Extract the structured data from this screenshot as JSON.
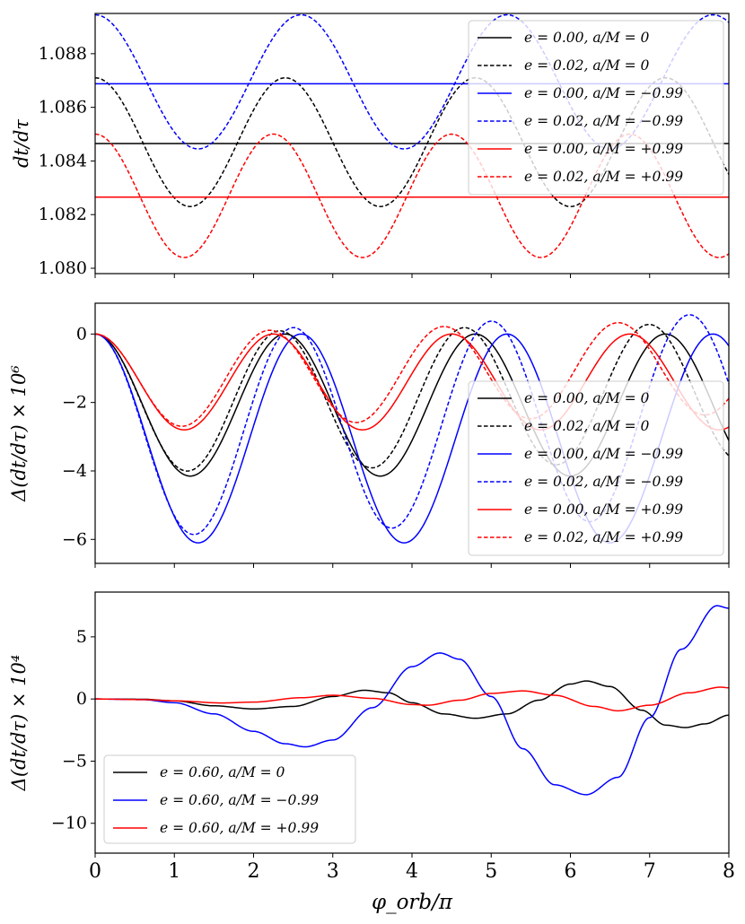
{
  "chart_data": [
    {
      "type": "line",
      "title": "",
      "ylabel": "dt/dτ",
      "xlabel": "",
      "xlim": [
        0,
        8
      ],
      "ylim": [
        1.0798,
        1.0895
      ],
      "yticks": [
        1.08,
        1.082,
        1.084,
        1.086,
        1.088
      ],
      "ytick_labels": [
        "1.080",
        "1.082",
        "1.084",
        "1.086",
        "1.088"
      ],
      "legend_position": "top-right",
      "series": [
        {
          "name": "e = 0.00, a/M = 0",
          "color": "#000000",
          "dash": "solid",
          "kind": "const",
          "value": 1.08465
        },
        {
          "name": "e = 0.02, a/M = 0",
          "color": "#000000",
          "dash": "dashed",
          "kind": "cos",
          "mean": 1.0847,
          "amp": 0.0024,
          "period": 2.4
        },
        {
          "name": "e = 0.00, a/M = −0.99",
          "color": "#0000ff",
          "dash": "solid",
          "kind": "const",
          "value": 1.08688
        },
        {
          "name": "e = 0.02, a/M = −0.99",
          "color": "#0000ff",
          "dash": "dashed",
          "kind": "cos",
          "mean": 1.08695,
          "amp": 0.0025,
          "period": 2.6
        },
        {
          "name": "e = 0.00, a/M = +0.99",
          "color": "#ff0000",
          "dash": "solid",
          "kind": "const",
          "value": 1.08265
        },
        {
          "name": "e = 0.02, a/M = +0.99",
          "color": "#ff0000",
          "dash": "dashed",
          "kind": "cos",
          "mean": 1.0827,
          "amp": 0.0023,
          "period": 2.25
        }
      ]
    },
    {
      "type": "line",
      "title": "",
      "ylabel": "Δ(dt/dτ) × 10⁶",
      "xlabel": "",
      "xlim": [
        0,
        8
      ],
      "ylim": [
        -6.7,
        0.9
      ],
      "yticks": [
        0,
        -2,
        -4,
        -6
      ],
      "ytick_labels": [
        "0",
        "−2",
        "−4",
        "−6"
      ],
      "legend_position": "bottom-right",
      "series": [
        {
          "name": "e = 0.00, a/M = 0",
          "color": "#000000",
          "dash": "solid",
          "kind": "dip",
          "depth": 4.15,
          "period": 2.4,
          "growth": 0
        },
        {
          "name": "e = 0.02, a/M = 0",
          "color": "#000000",
          "dash": "dashed",
          "kind": "dip",
          "depth": 4.05,
          "period": 2.33,
          "growth": 0.08
        },
        {
          "name": "e = 0.00, a/M = −0.99",
          "color": "#0000ff",
          "dash": "solid",
          "kind": "dip",
          "depth": 6.1,
          "period": 2.6,
          "growth": 0
        },
        {
          "name": "e = 0.02, a/M = −0.99",
          "color": "#0000ff",
          "dash": "dashed",
          "kind": "dip",
          "depth": 5.95,
          "period": 2.5,
          "growth": 0.15
        },
        {
          "name": "e = 0.00, a/M = +0.99",
          "color": "#ff0000",
          "dash": "solid",
          "kind": "dip",
          "depth": 2.8,
          "period": 2.25,
          "growth": 0
        },
        {
          "name": "e = 0.02, a/M = +0.99",
          "color": "#ff0000",
          "dash": "dashed",
          "kind": "dip",
          "depth": 2.75,
          "period": 2.2,
          "growth": 0.1
        }
      ]
    },
    {
      "type": "line",
      "title": "",
      "ylabel": "Δ(dt/dτ) × 10⁴",
      "xlabel": "φ_orb/π",
      "xlim": [
        0,
        8
      ],
      "ylim": [
        -12.4,
        8.6
      ],
      "yticks": [
        5,
        0,
        -5,
        -10
      ],
      "ytick_labels": [
        "5",
        "0",
        "−5",
        "−10"
      ],
      "xticks": [
        0,
        1,
        2,
        3,
        4,
        5,
        6,
        7,
        8
      ],
      "xtick_labels": [
        "0",
        "1",
        "2",
        "3",
        "4",
        "5",
        "6",
        "7",
        "8"
      ],
      "legend_position": "bottom-left",
      "series": [
        {
          "name": "e = 0.60, a/M = 0",
          "color": "#000000",
          "dash": "solid",
          "points": [
            [
              0,
              0
            ],
            [
              0.6,
              -0.02
            ],
            [
              1.0,
              -0.15
            ],
            [
              1.5,
              -0.55
            ],
            [
              2.0,
              -0.8
            ],
            [
              2.5,
              -0.6
            ],
            [
              3.0,
              0.2
            ],
            [
              3.4,
              0.7
            ],
            [
              3.7,
              0.5
            ],
            [
              4.0,
              -0.3
            ],
            [
              4.4,
              -1.2
            ],
            [
              4.8,
              -1.55
            ],
            [
              5.2,
              -1.2
            ],
            [
              5.6,
              -0.1
            ],
            [
              6.0,
              1.2
            ],
            [
              6.2,
              1.45
            ],
            [
              6.5,
              1.0
            ],
            [
              6.9,
              -0.9
            ],
            [
              7.2,
              -2.1
            ],
            [
              7.45,
              -2.3
            ],
            [
              7.7,
              -2.0
            ],
            [
              8.0,
              -1.3
            ]
          ]
        },
        {
          "name": "e = 0.60, a/M = −0.99",
          "color": "#0000ff",
          "dash": "solid",
          "points": [
            [
              0,
              0
            ],
            [
              0.6,
              -0.05
            ],
            [
              1.0,
              -0.3
            ],
            [
              1.5,
              -1.2
            ],
            [
              2.0,
              -2.6
            ],
            [
              2.4,
              -3.6
            ],
            [
              2.65,
              -3.85
            ],
            [
              3.0,
              -3.3
            ],
            [
              3.5,
              -0.7
            ],
            [
              4.0,
              2.6
            ],
            [
              4.35,
              3.7
            ],
            [
              4.6,
              3.2
            ],
            [
              5.0,
              0.2
            ],
            [
              5.4,
              -4.0
            ],
            [
              5.8,
              -6.9
            ],
            [
              6.2,
              -7.7
            ],
            [
              6.6,
              -6.3
            ],
            [
              7.0,
              -1.5
            ],
            [
              7.4,
              4.0
            ],
            [
              7.85,
              7.5
            ],
            [
              8.0,
              7.3
            ]
          ]
        },
        {
          "name": "e = 0.60, a/M = +0.99",
          "color": "#ff0000",
          "dash": "solid",
          "points": [
            [
              0,
              0
            ],
            [
              0.6,
              -0.05
            ],
            [
              1.0,
              -0.15
            ],
            [
              1.6,
              -0.32
            ],
            [
              2.0,
              -0.25
            ],
            [
              2.6,
              0.1
            ],
            [
              3.0,
              0.3
            ],
            [
              3.5,
              0.05
            ],
            [
              4.0,
              -0.45
            ],
            [
              4.2,
              -0.5
            ],
            [
              4.6,
              -0.1
            ],
            [
              5.0,
              0.45
            ],
            [
              5.4,
              0.65
            ],
            [
              5.8,
              0.3
            ],
            [
              6.3,
              -0.6
            ],
            [
              6.6,
              -0.95
            ],
            [
              7.0,
              -0.5
            ],
            [
              7.5,
              0.5
            ],
            [
              7.9,
              0.95
            ],
            [
              8.0,
              0.9
            ]
          ]
        }
      ]
    }
  ]
}
